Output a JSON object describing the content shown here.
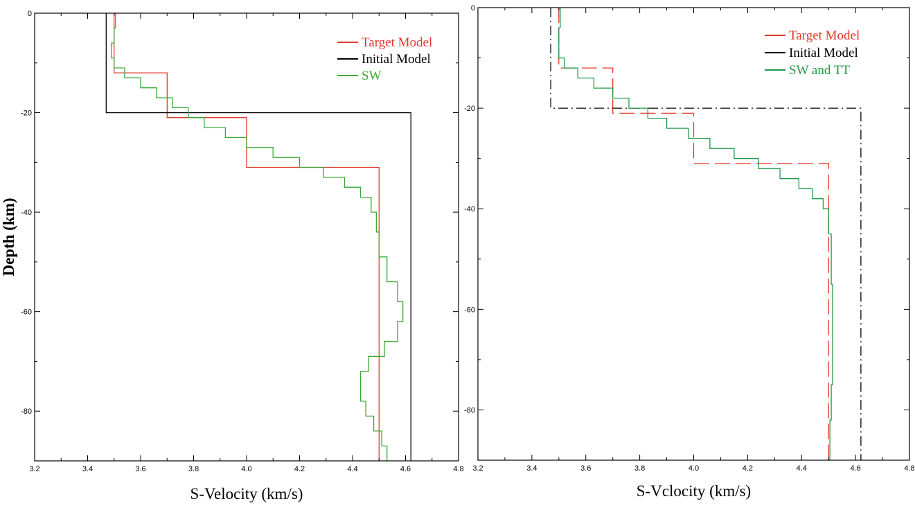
{
  "chart_data": [
    {
      "type": "line",
      "xlabel": "S-Velocity (km/s)",
      "ylabel": "Depth (km)",
      "xlim": [
        3.2,
        4.8
      ],
      "ylim": [
        -90,
        0
      ],
      "xticks": [
        "3.2",
        "3.4",
        "3.6",
        "3.8",
        "4.0",
        "4.2",
        "4.4",
        "4.6",
        "4.8"
      ],
      "yticks": [
        "0",
        "-20",
        "-40",
        "-60",
        "-80"
      ],
      "grid": false,
      "legend_position": "top-right",
      "series": [
        {
          "name": "Target Model",
          "color": "#e0392b",
          "style": "solid",
          "step": true,
          "points": [
            [
              3.5,
              0
            ],
            [
              3.5,
              -12
            ],
            [
              3.7,
              -12
            ],
            [
              3.7,
              -21
            ],
            [
              4.0,
              -21
            ],
            [
              4.0,
              -31
            ],
            [
              4.5,
              -31
            ],
            [
              4.5,
              -90
            ]
          ]
        },
        {
          "name": "Initial Model",
          "color": "#000000",
          "style": "solid",
          "step": true,
          "points": [
            [
              3.47,
              0
            ],
            [
              3.47,
              -20
            ],
            [
              4.62,
              -20
            ],
            [
              4.62,
              -90
            ]
          ]
        },
        {
          "name": "SW",
          "color": "#3aaa35",
          "style": "solid",
          "step": true,
          "points": [
            [
              3.505,
              0
            ],
            [
              3.5,
              -3
            ],
            [
              3.49,
              -6
            ],
            [
              3.5,
              -9
            ],
            [
              3.54,
              -11
            ],
            [
              3.6,
              -13
            ],
            [
              3.66,
              -15
            ],
            [
              3.72,
              -17
            ],
            [
              3.78,
              -19
            ],
            [
              3.84,
              -21
            ],
            [
              3.92,
              -23
            ],
            [
              4.0,
              -25
            ],
            [
              4.1,
              -27
            ],
            [
              4.2,
              -29
            ],
            [
              4.29,
              -31
            ],
            [
              4.37,
              -33
            ],
            [
              4.43,
              -35
            ],
            [
              4.47,
              -37
            ],
            [
              4.49,
              -40
            ],
            [
              4.5,
              -44
            ],
            [
              4.53,
              -49
            ],
            [
              4.57,
              -54
            ],
            [
              4.59,
              -58
            ],
            [
              4.57,
              -62
            ],
            [
              4.52,
              -66
            ],
            [
              4.46,
              -69
            ],
            [
              4.43,
              -72
            ],
            [
              4.43,
              -75
            ],
            [
              4.45,
              -78
            ],
            [
              4.48,
              -81
            ],
            [
              4.51,
              -84
            ],
            [
              4.53,
              -87
            ],
            [
              4.53,
              -90
            ]
          ]
        }
      ]
    },
    {
      "type": "line",
      "xlabel": "S-Vclocity (km/s)",
      "ylabel": "",
      "xlim": [
        3.2,
        4.8
      ],
      "ylim": [
        -90,
        0
      ],
      "xticks": [
        "3.2",
        "3.4",
        "3.6",
        "3.8",
        "4.0",
        "4.2",
        "4.4",
        "4.6",
        "4.8"
      ],
      "yticks": [
        "0",
        "-20",
        "-40",
        "-60",
        "-80"
      ],
      "grid": false,
      "legend_position": "top-right",
      "series": [
        {
          "name": "Target Model",
          "color": "#e0392b",
          "style": "dashed",
          "step": true,
          "points": [
            [
              3.5,
              0
            ],
            [
              3.5,
              -12
            ],
            [
              3.7,
              -12
            ],
            [
              3.7,
              -21
            ],
            [
              4.0,
              -21
            ],
            [
              4.0,
              -31
            ],
            [
              4.5,
              -31
            ],
            [
              4.5,
              -90
            ]
          ]
        },
        {
          "name": "Initial Model",
          "color": "#000000",
          "style": "dashdot",
          "step": true,
          "points": [
            [
              3.47,
              0
            ],
            [
              3.47,
              -20
            ],
            [
              4.62,
              -20
            ],
            [
              4.62,
              -90
            ]
          ]
        },
        {
          "name": "SW and TT",
          "color": "#1f9a4a",
          "style": "solid",
          "step": true,
          "points": [
            [
              3.505,
              0
            ],
            [
              3.5,
              -4
            ],
            [
              3.5,
              -7
            ],
            [
              3.52,
              -10
            ],
            [
              3.57,
              -12
            ],
            [
              3.63,
              -14
            ],
            [
              3.7,
              -16
            ],
            [
              3.76,
              -18
            ],
            [
              3.83,
              -20
            ],
            [
              3.9,
              -22
            ],
            [
              3.98,
              -24
            ],
            [
              4.06,
              -26
            ],
            [
              4.15,
              -28
            ],
            [
              4.24,
              -30
            ],
            [
              4.32,
              -32
            ],
            [
              4.39,
              -34
            ],
            [
              4.44,
              -36
            ],
            [
              4.48,
              -38
            ],
            [
              4.5,
              -40
            ],
            [
              4.51,
              -45
            ],
            [
              4.515,
              -55
            ],
            [
              4.515,
              -65
            ],
            [
              4.51,
              -75
            ],
            [
              4.505,
              -82
            ],
            [
              4.5,
              -90
            ]
          ]
        }
      ]
    }
  ]
}
